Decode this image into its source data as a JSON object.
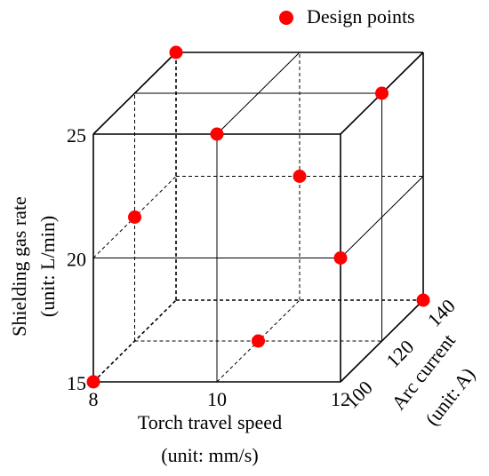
{
  "chart_data": {
    "type": "scatter3d",
    "legend": "Design points",
    "color": "#ff0000",
    "xlabel": [
      "Torch travel speed",
      "(unit: mm/s)"
    ],
    "ylabel": [
      "Shielding gas rate",
      "(unit: L/min)"
    ],
    "zlabel": [
      "Arc current",
      "(unit: A)"
    ],
    "x": [
      8,
      12,
      10,
      10,
      8,
      12,
      12,
      10,
      8
    ],
    "y": [
      25,
      25,
      25,
      20,
      20,
      20,
      15,
      15,
      15
    ],
    "z": [
      140,
      120,
      100,
      140,
      120,
      100,
      140,
      120,
      100
    ],
    "xlim": [
      8,
      12
    ],
    "xticks": [
      8,
      10,
      12
    ],
    "ylim": [
      15,
      25
    ],
    "yticks": [
      15,
      20,
      25
    ],
    "zlim": [
      100,
      140
    ],
    "zticks": [
      100,
      120,
      140
    ],
    "grid": true
  }
}
